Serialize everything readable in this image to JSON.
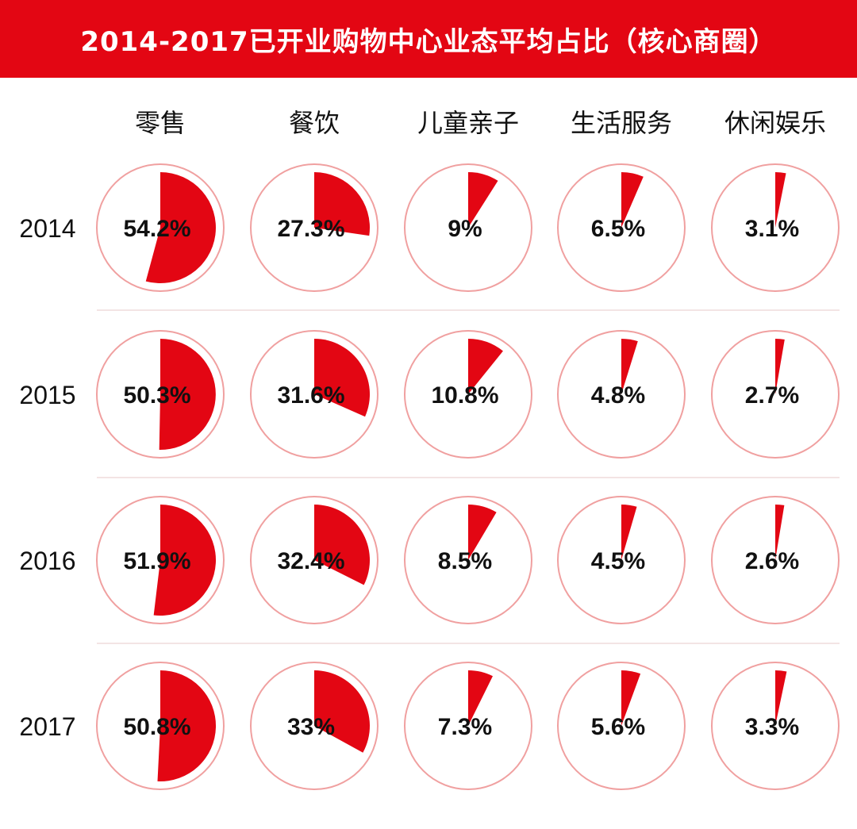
{
  "title": "2014-2017已开业购物中心业态平均占比（核心商圈）",
  "colors": {
    "accent": "#e30613",
    "ring": "#f0a0a0",
    "divider": "#e7c9c9"
  },
  "chart_data": {
    "type": "pie",
    "title": "2014-2017已开业购物中心业态平均占比（核心商圈）",
    "categories": [
      "零售",
      "餐饮",
      "儿童亲子",
      "生活服务",
      "休闲娱乐"
    ],
    "series": [
      {
        "name": "2014",
        "values": [
          54.2,
          27.3,
          9,
          6.5,
          3.1
        ],
        "labels": [
          "54.2%",
          "27.3%",
          "9%",
          "6.5%",
          "3.1%"
        ]
      },
      {
        "name": "2015",
        "values": [
          50.3,
          31.6,
          10.8,
          4.8,
          2.7
        ],
        "labels": [
          "50.3%",
          "31.6%",
          "10.8%",
          "4.8%",
          "2.7%"
        ]
      },
      {
        "name": "2016",
        "values": [
          51.9,
          32.4,
          8.5,
          4.5,
          2.6
        ],
        "labels": [
          "51.9%",
          "32.4%",
          "8.5%",
          "4.5%",
          "2.6%"
        ]
      },
      {
        "name": "2017",
        "values": [
          50.8,
          33,
          7.3,
          5.6,
          3.3
        ],
        "labels": [
          "50.8%",
          "33%",
          "7.3%",
          "5.6%",
          "3.3%"
        ]
      }
    ]
  }
}
